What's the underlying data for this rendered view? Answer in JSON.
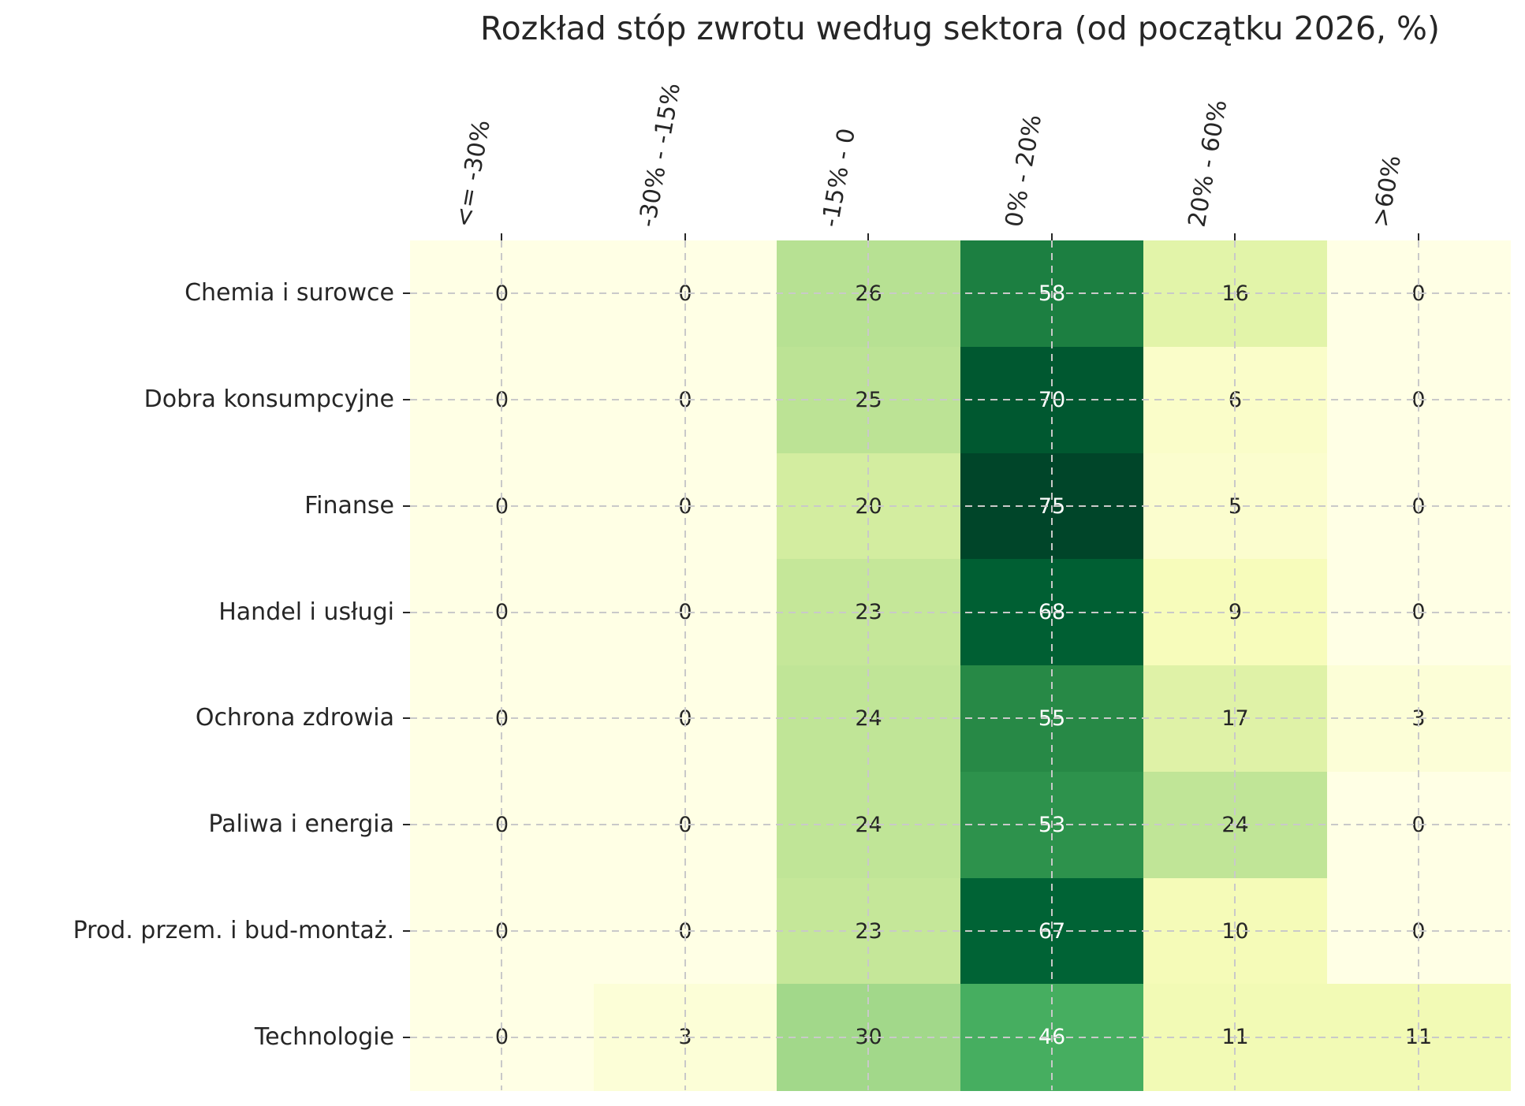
{
  "chart_data": {
    "type": "heatmap",
    "title": "Rozkład stóp zwrotu według sektora (od początku 2026, %)",
    "xlabel": "",
    "ylabel": "",
    "x_categories": [
      "<= -30%",
      "-30% - -15%",
      "-15% - 0",
      "0% - 20%",
      "20% - 60%",
      ">60%"
    ],
    "y_categories": [
      "Chemia i surowce",
      "Dobra konsumpcyjne",
      "Finanse",
      "Handel i usługi",
      "Ochrona zdrowia",
      "Paliwa i energia",
      "Prod. przem. i bud-montaż.",
      "Technologie"
    ],
    "values": [
      [
        0,
        0,
        26,
        58,
        16,
        0
      ],
      [
        0,
        0,
        25,
        70,
        6,
        0
      ],
      [
        0,
        0,
        20,
        75,
        5,
        0
      ],
      [
        0,
        0,
        23,
        68,
        9,
        0
      ],
      [
        0,
        0,
        24,
        55,
        17,
        3
      ],
      [
        0,
        0,
        24,
        53,
        24,
        0
      ],
      [
        0,
        0,
        23,
        67,
        10,
        0
      ],
      [
        0,
        3,
        30,
        46,
        11,
        11
      ]
    ],
    "annotations": true,
    "legend": "none",
    "grid": "dashed-through-cell-centers",
    "colormap": {
      "name": "YlGn",
      "stops": [
        "#ffffe5",
        "#f7fcb9",
        "#d9f0a3",
        "#addd8e",
        "#78c679",
        "#41ab5d",
        "#238443",
        "#006837",
        "#004529"
      ],
      "vmin": 0,
      "vmax": 75
    },
    "colors": {
      "annotation_dark": "#262626",
      "annotation_light": "#ffffff",
      "gridline": "#c9c9c9",
      "tick": "#262626",
      "label_text": "#262626",
      "background": "#ffffff"
    }
  }
}
